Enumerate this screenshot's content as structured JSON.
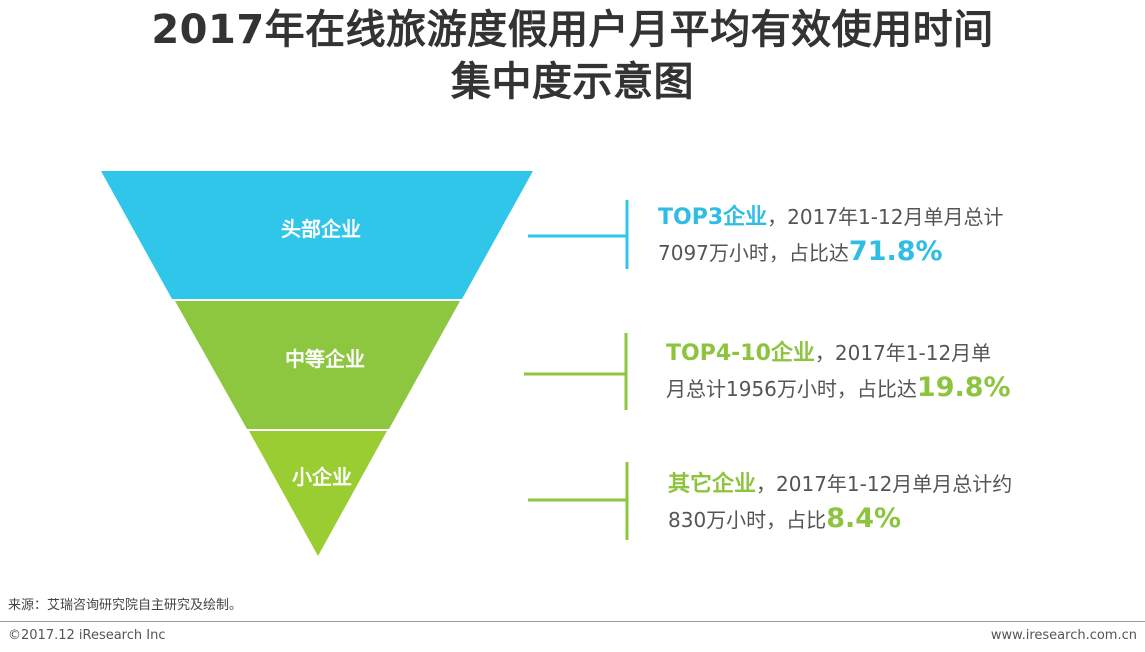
{
  "title": {
    "line1": "2017年在线旅游度假用户月平均有效使用时间",
    "line2": "集中度示意图"
  },
  "colors": {
    "top_segment": "#2fc6ea",
    "middle_segment": "#8dc63f",
    "bottom_segment": "#9acd32",
    "blue_text": "#2fbde3",
    "green_text": "#8dc43e"
  },
  "funnel": {
    "segments": [
      {
        "label": "头部企业",
        "highlight": "TOP3企业",
        "text_a": "，2017年1-12月单月总计",
        "text_b": "7097万小时，占比达",
        "percent": "71.8%"
      },
      {
        "label": "中等企业",
        "highlight": "TOP4-10企业",
        "text_a": "，2017年1-12月单",
        "text_b": "月总计1956万小时，占比达",
        "percent": "19.8%"
      },
      {
        "label": "小企业",
        "highlight": "其它企业",
        "text_a": "，2017年1-12月单月总计约",
        "text_b": "830万小时，占比",
        "percent": "8.4%"
      }
    ]
  },
  "source": "来源：艾瑞咨询研究院自主研究及绘制。",
  "footer": {
    "copyright": "©2017.12 iResearch Inc",
    "website": "www.iresearch.com.cn"
  }
}
